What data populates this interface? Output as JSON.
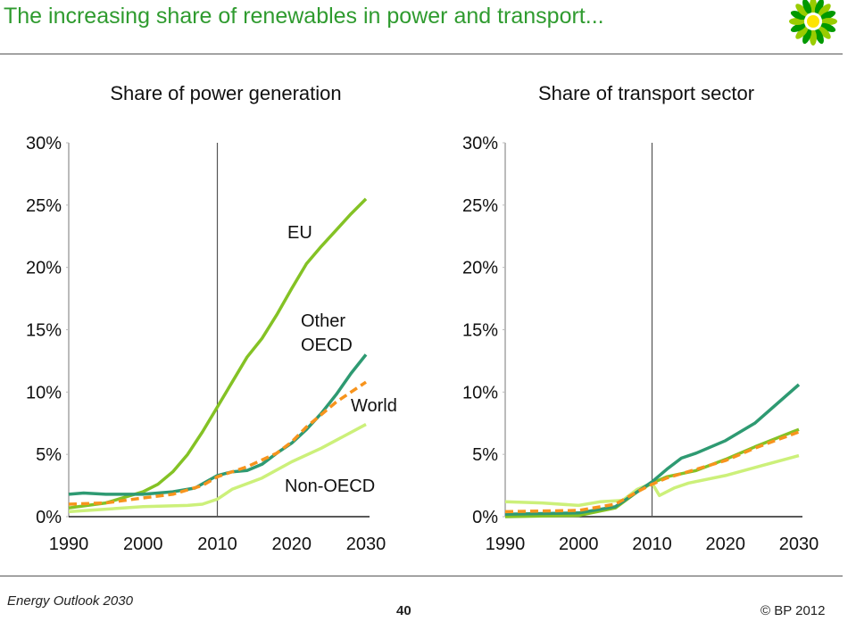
{
  "header": {
    "title": "The increasing share of renewables in power and transport..."
  },
  "footer": {
    "left": "Energy Outlook 2030",
    "page": "40",
    "copyright": "© BP 2012"
  },
  "colors": {
    "EU": "#84c225",
    "Other OECD": "#2e9a72",
    "World": "#f7941d",
    "Non-OECD": "#ccf07a"
  },
  "chart_data": [
    {
      "type": "line",
      "title": "Share of power generation",
      "xlim": [
        1990,
        2030
      ],
      "ylim": [
        0,
        30
      ],
      "xticks": [
        "1990",
        "2000",
        "2010",
        "2020",
        "2030"
      ],
      "yticks": [
        "0%",
        "5%",
        "10%",
        "15%",
        "20%",
        "25%",
        "30%"
      ],
      "vline": 2010,
      "labels": [
        {
          "text": "EU",
          "series": "EU"
        },
        {
          "text": "Other",
          "series": "Other OECD"
        },
        {
          "text": "OECD",
          "series": "Other OECD"
        },
        {
          "text": "World",
          "series": "World"
        },
        {
          "text": "Non-OECD",
          "series": "Non-OECD"
        }
      ],
      "series": [
        {
          "name": "EU",
          "x": [
            1990,
            1995,
            2000,
            2002,
            2004,
            2006,
            2008,
            2010,
            2012,
            2014,
            2016,
            2018,
            2020,
            2022,
            2024,
            2026,
            2028,
            2030
          ],
          "y": [
            0.7,
            1.1,
            2,
            2.6,
            3.6,
            5,
            6.8,
            8.8,
            10.8,
            12.8,
            14.3,
            16.2,
            18.3,
            20.3,
            21.7,
            23,
            24.3,
            25.5
          ]
        },
        {
          "name": "Other OECD",
          "x": [
            1990,
            1992,
            1995,
            2000,
            2004,
            2007,
            2010,
            2012,
            2014,
            2016,
            2018,
            2020,
            2022,
            2024,
            2026,
            2028,
            2030
          ],
          "y": [
            1.8,
            1.9,
            1.8,
            1.8,
            2,
            2.3,
            3.3,
            3.6,
            3.7,
            4.2,
            5.1,
            5.9,
            7,
            8.3,
            9.8,
            11.5,
            13
          ]
        },
        {
          "name": "World",
          "x": [
            1990,
            1995,
            2000,
            2004,
            2008,
            2010,
            2014,
            2018,
            2020,
            2022,
            2024,
            2026,
            2028,
            2030
          ],
          "y": [
            1,
            1.1,
            1.5,
            1.8,
            2.5,
            3.2,
            4,
            5.1,
            6,
            7.2,
            8.2,
            9.2,
            10,
            10.8
          ]
        },
        {
          "name": "Non-OECD",
          "x": [
            1990,
            1995,
            2000,
            2006,
            2008,
            2010,
            2012,
            2016,
            2020,
            2024,
            2030
          ],
          "y": [
            0.4,
            0.6,
            0.8,
            0.9,
            1,
            1.4,
            2.2,
            3.1,
            4.4,
            5.5,
            7.4
          ]
        }
      ]
    },
    {
      "type": "line",
      "title": "Share of transport sector",
      "xlim": [
        1990,
        2030
      ],
      "ylim": [
        0,
        30
      ],
      "xticks": [
        "1990",
        "2000",
        "2010",
        "2020",
        "2030"
      ],
      "yticks": [
        "0%",
        "5%",
        "10%",
        "15%",
        "20%",
        "25%",
        "30%"
      ],
      "vline": 2010,
      "labels": [],
      "series": [
        {
          "name": "Other OECD",
          "x": [
            1990,
            2000,
            2005,
            2008,
            2010,
            2012,
            2014,
            2016,
            2020,
            2024,
            2030
          ],
          "y": [
            0.2,
            0.3,
            0.8,
            2,
            2.8,
            3.8,
            4.7,
            5.1,
            6.1,
            7.5,
            10.6
          ]
        },
        {
          "name": "EU",
          "x": [
            1990,
            2000,
            2005,
            2008,
            2010,
            2012,
            2016,
            2020,
            2024,
            2030
          ],
          "y": [
            0,
            0.1,
            0.7,
            2,
            2.7,
            3.2,
            3.7,
            4.6,
            5.6,
            7
          ]
        },
        {
          "name": "World",
          "x": [
            1990,
            2000,
            2005,
            2008,
            2010,
            2012,
            2016,
            2020,
            2024,
            2030
          ],
          "y": [
            0.4,
            0.5,
            1,
            2,
            2.6,
            3.1,
            3.8,
            4.5,
            5.5,
            6.8
          ]
        },
        {
          "name": "Non-OECD",
          "x": [
            1990,
            1995,
            2000,
            2003,
            2006,
            2008,
            2010,
            2011,
            2013,
            2015,
            2020,
            2025,
            2030
          ],
          "y": [
            1.2,
            1.1,
            0.9,
            1.2,
            1.3,
            2.2,
            2.7,
            1.7,
            2.3,
            2.7,
            3.3,
            4.1,
            4.9
          ]
        }
      ]
    }
  ]
}
